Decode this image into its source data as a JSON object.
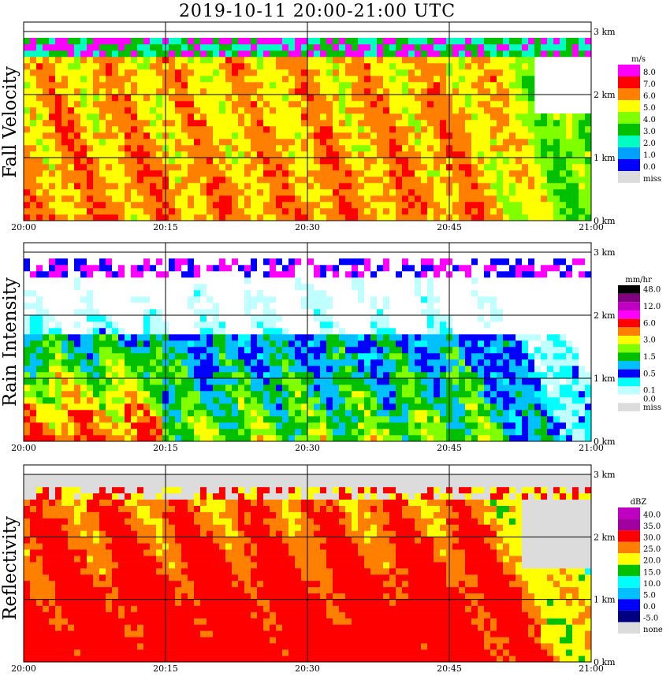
{
  "title": "2019-10-11   20:00-21:00 UTC",
  "height_ticks": [
    "0 km",
    "1 km",
    "2 km",
    "3 km"
  ],
  "time_ticks": [
    "20:00",
    "20:15",
    "20:30",
    "20:45",
    "21:00"
  ],
  "chart_data": [
    {
      "type": "heatmap",
      "title": "Fall Velocity",
      "ylabel": "Fall Velocity",
      "units": "m/s",
      "x_range": [
        "20:00",
        "21:00"
      ],
      "y_range_km": [
        0,
        3
      ],
      "legend": [
        {
          "label": "8.0",
          "color": "#ff00ff"
        },
        {
          "label": "7.0",
          "color": "#ff0000"
        },
        {
          "label": "6.0",
          "color": "#ff8000"
        },
        {
          "label": "5.0",
          "color": "#ffff00"
        },
        {
          "label": "4.0",
          "color": "#80ff00"
        },
        {
          "label": "3.0",
          "color": "#00c000"
        },
        {
          "label": "2.0",
          "color": "#00ffc0"
        },
        {
          "label": "1.0",
          "color": "#00a0ff"
        },
        {
          "label": "0.0",
          "color": "#0000ff"
        },
        {
          "label": "miss",
          "color": "#dcdcdc"
        }
      ]
    },
    {
      "type": "heatmap",
      "title": "Rain Intensity",
      "ylabel": "Rain Intensity",
      "units": "mm/hr",
      "x_range": [
        "20:00",
        "21:00"
      ],
      "y_range_km": [
        0,
        3
      ],
      "legend": [
        {
          "label": "48.0",
          "color": "#000000"
        },
        {
          "label": "",
          "color": "#800080"
        },
        {
          "label": "12.0",
          "color": "#c000c0"
        },
        {
          "label": "",
          "color": "#ff00ff"
        },
        {
          "label": "6.0",
          "color": "#ff0000"
        },
        {
          "label": "",
          "color": "#ff8000"
        },
        {
          "label": "3.0",
          "color": "#ffff00"
        },
        {
          "label": "",
          "color": "#80ff00"
        },
        {
          "label": "1.5",
          "color": "#00c000"
        },
        {
          "label": "",
          "color": "#00c0ff"
        },
        {
          "label": "0.5",
          "color": "#0000ff"
        },
        {
          "label": "",
          "color": "#00ffff"
        },
        {
          "label": "0.1",
          "color": "#c0ffff"
        },
        {
          "label": "0.0",
          "color": "#ffffff"
        },
        {
          "label": "miss",
          "color": "#dcdcdc"
        }
      ]
    },
    {
      "type": "heatmap",
      "title": "Reflectivity",
      "ylabel": "Reflectivity",
      "units": "dBZ",
      "x_range": [
        "20:00",
        "21:00"
      ],
      "y_range_km": [
        0,
        3
      ],
      "legend": [
        {
          "label": "40.0",
          "color": "#c000c0"
        },
        {
          "label": "35.0",
          "color": "#a000a0"
        },
        {
          "label": "30.0",
          "color": "#ff0000"
        },
        {
          "label": "25.0",
          "color": "#ff8000"
        },
        {
          "label": "20.0",
          "color": "#ffff00"
        },
        {
          "label": "15.0",
          "color": "#00c000"
        },
        {
          "label": "10.0",
          "color": "#00ffff"
        },
        {
          "label": "5.0",
          "color": "#00c0ff"
        },
        {
          "label": "0.0",
          "color": "#0000ff"
        },
        {
          "label": "-5.0",
          "color": "#000080"
        },
        {
          "label": "none",
          "color": "#dcdcdc"
        }
      ]
    }
  ]
}
